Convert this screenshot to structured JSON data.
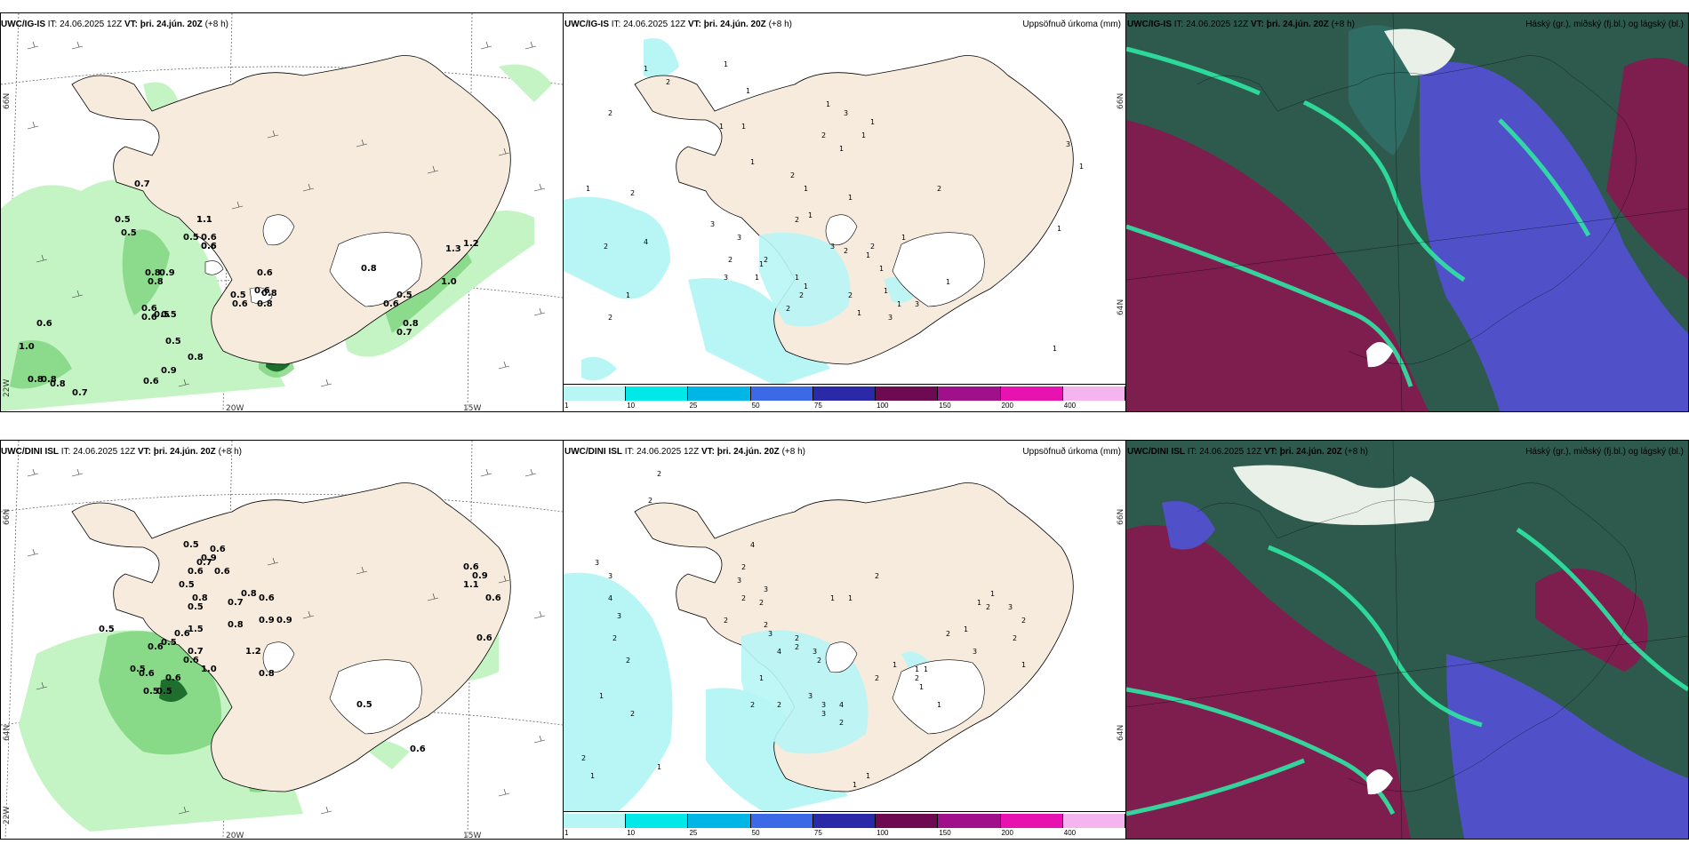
{
  "rows": [
    {
      "wind_panel": {
        "model": "UWC/IG-IS",
        "it_label": "IT:",
        "it": "24.06.2025 12Z",
        "vt_label": "VT:",
        "vt": "þri. 24.jún. 20Z",
        "lead": "(+8 h)",
        "labels": [
          "0.7",
          "0.5",
          "0.5",
          "1.1",
          "1.1",
          "0.5",
          "0.6",
          "0.6",
          "0.6",
          "0.8",
          "0.9",
          "0.8",
          "0.6",
          "0.5",
          "0.6",
          "0.5",
          "0.6",
          "0.6",
          "0.8",
          "0.5",
          "0.6",
          "0.8",
          "0.6",
          "1.0",
          "0.5",
          "0.9",
          "0.8",
          "0.6",
          "0.8",
          "0.8",
          "0.8",
          "0.7",
          "0.8",
          "1.3",
          "1.2",
          "1.0",
          "0.8",
          "0.7",
          "0.6",
          "0.5"
        ]
      },
      "precip_panel": {
        "model": "UWC/IG-IS",
        "it_label": "IT:",
        "it": "24.06.2025 12Z",
        "vt_label": "VT:",
        "vt": "þri. 24.jún. 20Z",
        "lead": "(+8 h)",
        "title": "Uppsöfnuð úrkoma (mm)",
        "labels": [
          "1",
          "2",
          "2",
          "1",
          "2",
          "2",
          "4",
          "2",
          "1",
          "1",
          "1",
          "1",
          "1",
          "3",
          "1",
          "1",
          "2",
          "1",
          "1",
          "2",
          "3",
          "3",
          "2",
          "2",
          "3",
          "2",
          "2",
          "3",
          "1",
          "1",
          "2",
          "2",
          "1",
          "1",
          "2",
          "1",
          "1",
          "1",
          "3",
          "3",
          "2",
          "1",
          "1",
          "1",
          "1",
          "1",
          "1",
          "2",
          "1",
          "1",
          "3",
          "1",
          "1",
          "1"
        ]
      },
      "cloud_panel": {
        "model": "UWC/IG-IS",
        "it_label": "IT:",
        "it": "24.06.2025 12Z",
        "vt_label": "VT:",
        "vt": "þri. 24.jún. 20Z",
        "lead": "(+8 h)",
        "title": "Háský (gr.), miðský (fj.bl.) og lágský (bl.)"
      }
    },
    {
      "wind_panel": {
        "model": "UWC/DINI ISL",
        "it_label": "IT:",
        "it": "24.06.2025 12Z",
        "vt_label": "VT:",
        "vt": "þri. 24.jún. 20Z",
        "lead": "(+8 h)",
        "labels": [
          "0.5",
          "0.6",
          "0.9",
          "0.6",
          "0.7",
          "0.6",
          "0.5",
          "0.8",
          "0.5",
          "1.5",
          "0.6",
          "0.7",
          "0.6",
          "0.5",
          "0.6",
          "0.8",
          "0.8",
          "0.9",
          "0.9",
          "0.6",
          "0.7",
          "0.5",
          "1.2",
          "0.5",
          "0.6",
          "1.0",
          "0.8",
          "0.5",
          "0.5",
          "0.6",
          "0.6",
          "0.9",
          "1.1",
          "0.6",
          "0.6",
          "0.6",
          "0.5"
        ]
      },
      "precip_panel": {
        "model": "UWC/DINI ISL",
        "it_label": "IT:",
        "it": "24.06.2025 12Z",
        "vt_label": "VT:",
        "vt": "þri. 24.jún. 20Z",
        "lead": "(+8 h)",
        "title": "Uppsöfnuð úrkoma (mm)",
        "labels": [
          "2",
          "2",
          "3",
          "3",
          "4",
          "3",
          "2",
          "2",
          "1",
          "2",
          "2",
          "1",
          "1",
          "4",
          "2",
          "3",
          "3",
          "2",
          "2",
          "2",
          "2",
          "3",
          "2",
          "2",
          "4",
          "3",
          "2",
          "1",
          "2",
          "2",
          "3",
          "3",
          "4",
          "3",
          "2",
          "1",
          "1",
          "2",
          "1",
          "1",
          "1",
          "2",
          "1",
          "1",
          "1",
          "2",
          "3",
          "2",
          "2",
          "1",
          "1",
          "2",
          "3",
          "1",
          "2",
          "1",
          "1"
        ]
      },
      "cloud_panel": {
        "model": "UWC/DINI ISL",
        "it_label": "IT:",
        "it": "24.06.2025 12Z",
        "vt_label": "VT:",
        "vt": "þri. 24.jún. 20Z",
        "lead": "(+8 h)",
        "title": "Háský (gr.), miðský (fj.bl.) og lágský (bl.)"
      }
    }
  ],
  "axis": {
    "lon_20w": "20W",
    "lon_15w": "15W",
    "lat_66n": "66N",
    "lat_64n": "64N",
    "lat_22w": "22W"
  },
  "colorbar": {
    "ticks": [
      "1",
      "10",
      "25",
      "50",
      "75",
      "100",
      "150",
      "200",
      "400"
    ],
    "colors": [
      "#b8f6f6",
      "#00e8e8",
      "#00b6e6",
      "#3c6ae6",
      "#2a2aa8",
      "#6e0a52",
      "#a0108a",
      "#e812b0",
      "#f4b4f0"
    ]
  },
  "colors": {
    "land": "#f6ebdc",
    "precip_light": "#b8f6f6",
    "green_light": "#c4f4c4",
    "cloud_high": "#3aa070",
    "cloud_mid": "#7e1e4e",
    "cloud_low": "#5050c8"
  }
}
